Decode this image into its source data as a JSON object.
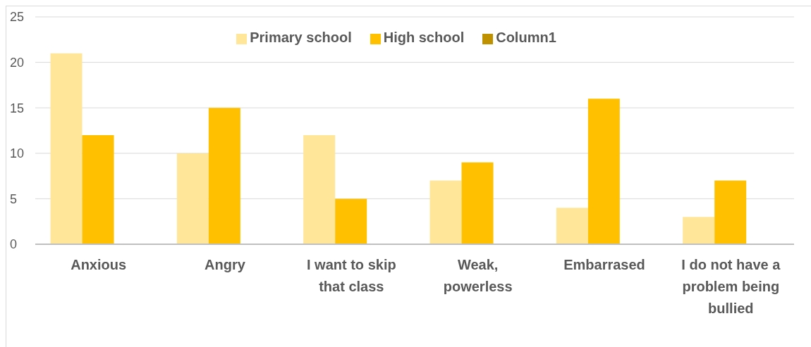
{
  "chart_data": {
    "type": "bar",
    "categories": [
      "Anxious",
      "Angry",
      "I want to skip that class",
      "Weak, powerless",
      "Embarrased",
      "I do not have a problem being bullied"
    ],
    "series": [
      {
        "name": "Primary school",
        "color": "#ffe699",
        "values": [
          21,
          10,
          12,
          7,
          4,
          3
        ]
      },
      {
        "name": "High school",
        "color": "#ffc000",
        "values": [
          12,
          15,
          5,
          9,
          16,
          7
        ]
      },
      {
        "name": "Column1",
        "color": "#bf9000",
        "values": [
          null,
          null,
          null,
          null,
          null,
          null
        ]
      }
    ],
    "ylim": [
      0,
      25
    ],
    "yticks": [
      0,
      5,
      10,
      15,
      20,
      25
    ],
    "grid": "y",
    "legend": "top"
  }
}
